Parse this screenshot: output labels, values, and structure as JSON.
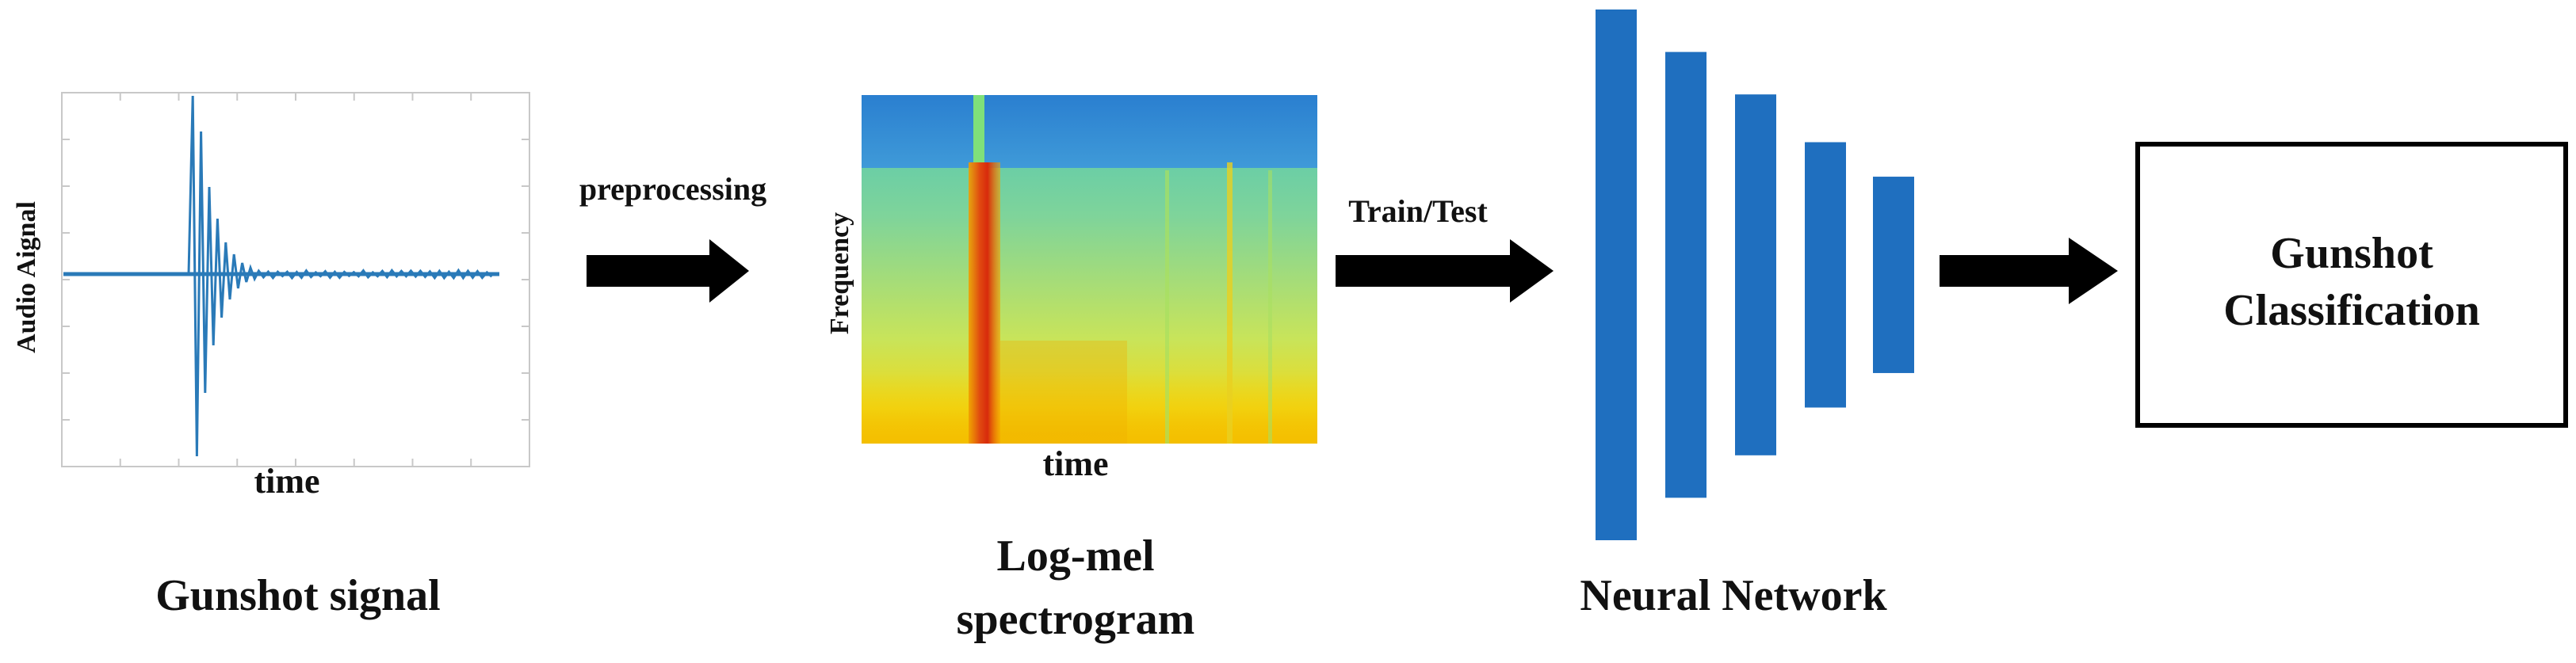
{
  "signal_panel": {
    "ylabel": "Audio Aignal",
    "xlabel": "time",
    "caption": "Gunshot signal"
  },
  "arrow_1": {
    "label": "preprocessing"
  },
  "spectrogram_panel": {
    "ylabel": "Frequency",
    "xlabel": "time",
    "caption_line1": "Log-mel",
    "caption_line2": "spectrogram"
  },
  "arrow_2": {
    "label": "Train/Test"
  },
  "network": {
    "caption": "Neural Network",
    "layer_heights": [
      1.0,
      0.84,
      0.68,
      0.5,
      0.37
    ],
    "color": "#1f6fbf"
  },
  "arrow_3": {
    "label": ""
  },
  "output_box": {
    "line1": "Gunshot",
    "line2": "Classification"
  },
  "colors": {
    "waveform": "#2a7ab8",
    "arrow": "#000000",
    "spectrogram_top": "#2b78c8",
    "spectrogram_low": "#8ed07a",
    "spectrogram_hot": "#e03010",
    "spectrogram_bottom": "#f5d000"
  }
}
